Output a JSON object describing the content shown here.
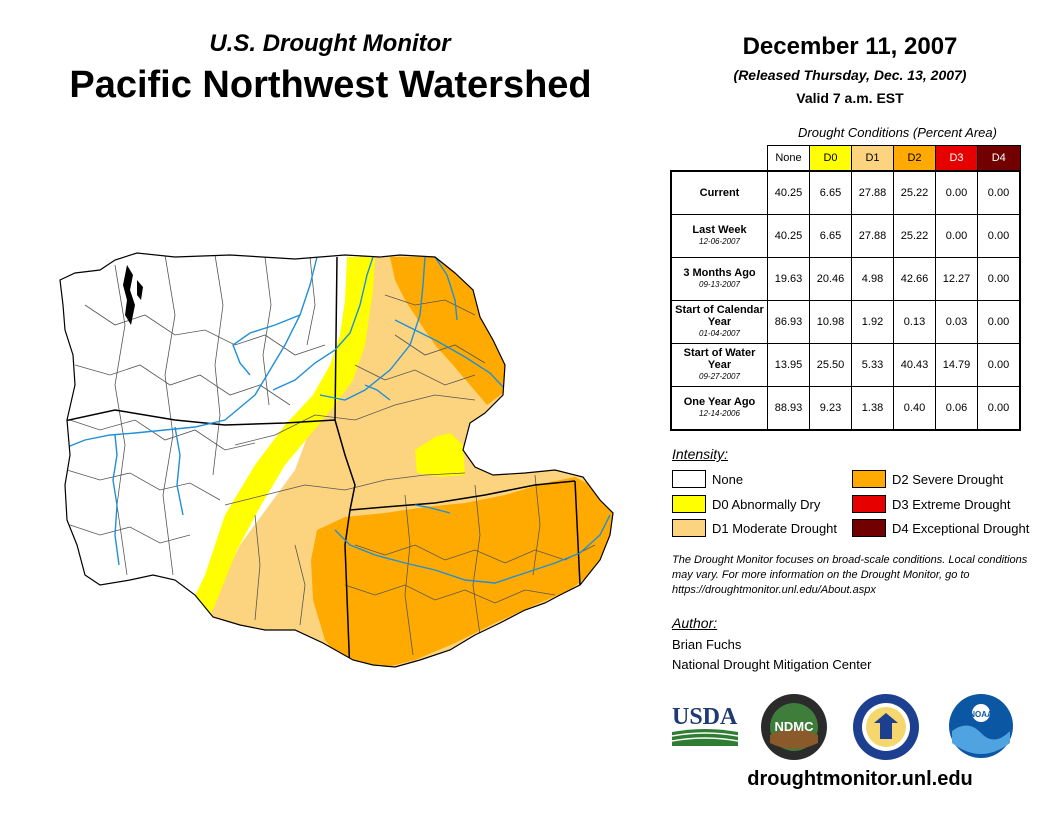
{
  "header": {
    "subtitle": "U.S. Drought Monitor",
    "title": "Pacific Northwest Watershed",
    "date": "December 11, 2007",
    "released": "(Released Thursday, Dec. 13, 2007)",
    "valid": "Valid 7 a.m. EST"
  },
  "colors": {
    "none": "#ffffff",
    "d0": "#ffff00",
    "d1": "#fcd37f",
    "d2": "#ffaa00",
    "d3": "#e60000",
    "d4": "#730000",
    "river": "#1e90d8"
  },
  "table": {
    "caption": "Drought Conditions (Percent Area)",
    "columns": [
      "None",
      "D0",
      "D1",
      "D2",
      "D3",
      "D4"
    ],
    "rows": [
      {
        "label": "Current",
        "date": "",
        "values": [
          "40.25",
          "6.65",
          "27.88",
          "25.22",
          "0.00",
          "0.00"
        ]
      },
      {
        "label": "Last Week",
        "date": "12-06-2007",
        "values": [
          "40.25",
          "6.65",
          "27.88",
          "25.22",
          "0.00",
          "0.00"
        ]
      },
      {
        "label": "3 Months Ago",
        "date": "09-13-2007",
        "values": [
          "19.63",
          "20.46",
          "4.98",
          "42.66",
          "12.27",
          "0.00"
        ]
      },
      {
        "label": "Start of Calendar Year",
        "date": "01-04-2007",
        "values": [
          "86.93",
          "10.98",
          "1.92",
          "0.13",
          "0.03",
          "0.00"
        ]
      },
      {
        "label": "Start of Water Year",
        "date": "09-27-2007",
        "values": [
          "13.95",
          "25.50",
          "5.33",
          "40.43",
          "14.79",
          "0.00"
        ]
      },
      {
        "label": "One Year Ago",
        "date": "12-14-2006",
        "values": [
          "88.93",
          "9.23",
          "1.38",
          "0.40",
          "0.06",
          "0.00"
        ]
      }
    ]
  },
  "legend": {
    "title": "Intensity:",
    "items": [
      {
        "label": "None"
      },
      {
        "label": "D0 Abnormally Dry"
      },
      {
        "label": "D1 Moderate Drought"
      },
      {
        "label": "D2 Severe Drought"
      },
      {
        "label": "D3 Extreme Drought"
      },
      {
        "label": "D4 Exceptional Drought"
      }
    ]
  },
  "note": "The Drought Monitor focuses on broad-scale conditions. Local conditions may vary. For more information on the Drought Monitor, go to https://droughtmonitor.unl.edu/About.aspx",
  "author": {
    "label": "Author:",
    "name": "Brian Fuchs",
    "org": "National Drought Mitigation Center"
  },
  "logos": {
    "usda": "USDA",
    "ndmc": "NDMC",
    "noaa": "NOAA"
  },
  "website": "droughtmonitor.unl.edu"
}
